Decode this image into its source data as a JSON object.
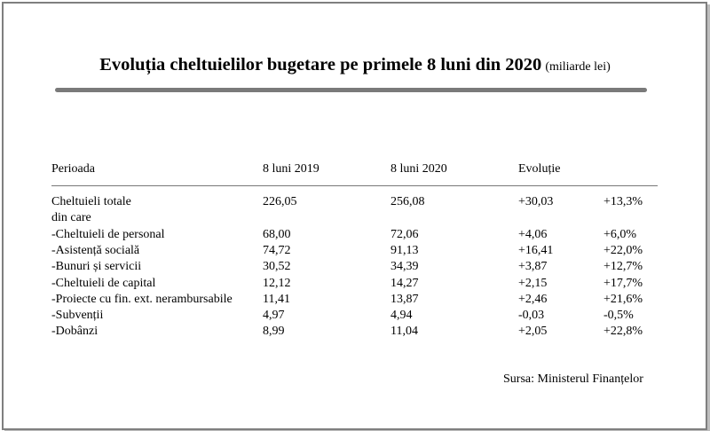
{
  "title": "Evoluția cheltuielilor bugetare pe primele 8 luni din 2020",
  "unit_note": "(miliarde lei)",
  "table": {
    "headers": [
      "Perioada",
      "8 luni 2019",
      "8 luni 2020",
      "Evoluție"
    ],
    "rows": [
      {
        "label": "Cheltuieli totale",
        "v2019": "226,05",
        "v2020": "256,08",
        "diff": "+30,03",
        "pct": "+13,3%"
      },
      {
        "label": "din care",
        "v2019": "",
        "v2020": "",
        "diff": "",
        "pct": ""
      },
      {
        "label": "-Cheltuieli  de personal",
        "v2019": "68,00",
        "v2020": "72,06",
        "diff": "+4,06",
        "pct": "+6,0%"
      },
      {
        "label": "-Asistență socială",
        "v2019": "74,72",
        "v2020": "91,13",
        "diff": "+16,41",
        "pct": "+22,0%"
      },
      {
        "label": "-Bunuri  și servicii",
        "v2019": "30,52",
        "v2020": "34,39",
        "diff": "+3,87",
        "pct": "+12,7%"
      },
      {
        "label": "-Cheltuieli  de capital",
        "v2019": "12,12",
        "v2020": "14,27",
        "diff": "+2,15",
        "pct": "+17,7%"
      },
      {
        "label": "-Proiecte cu fin. ext. nerambursabile",
        "v2019": "11,41",
        "v2020": "13,87",
        "diff": "+2,46",
        "pct": "+21,6%"
      },
      {
        "label": "-Subvenții",
        "v2019": "4,97",
        "v2020": "4,94",
        "diff": "-0,03",
        "pct": "-0,5%"
      },
      {
        "label": "-Dobânzi",
        "v2019": "8,99",
        "v2020": "11,04",
        "diff": "+2,05",
        "pct": "+22,8%"
      }
    ]
  },
  "source": "Sursa: Ministerul Finanțelor",
  "chart_data": {
    "type": "table",
    "title": "Evoluția cheltuielilor bugetare pe primele 8 luni din 2020",
    "unit": "(miliarde lei)",
    "columns": [
      "Perioada",
      "8 luni 2019",
      "8 luni 2020",
      "Evoluție",
      ""
    ],
    "rows": [
      [
        "Cheltuieli totale",
        226.05,
        256.08,
        30.03,
        13.3
      ],
      [
        "din care",
        null,
        null,
        null,
        null
      ],
      [
        "-Cheltuieli  de personal",
        68.0,
        72.06,
        4.06,
        6.0
      ],
      [
        "-Asistență socială",
        74.72,
        91.13,
        16.41,
        22.0
      ],
      [
        "-Bunuri  și servicii",
        30.52,
        34.39,
        3.87,
        12.7
      ],
      [
        "-Cheltuieli  de capital",
        12.12,
        14.27,
        2.15,
        17.7
      ],
      [
        "-Proiecte cu fin. ext. nerambursabile",
        11.41,
        13.87,
        2.46,
        21.6
      ],
      [
        "-Subvenții",
        4.97,
        4.94,
        -0.03,
        -0.5
      ],
      [
        "-Dobânzi",
        8.99,
        11.04,
        2.05,
        22.8
      ]
    ]
  }
}
